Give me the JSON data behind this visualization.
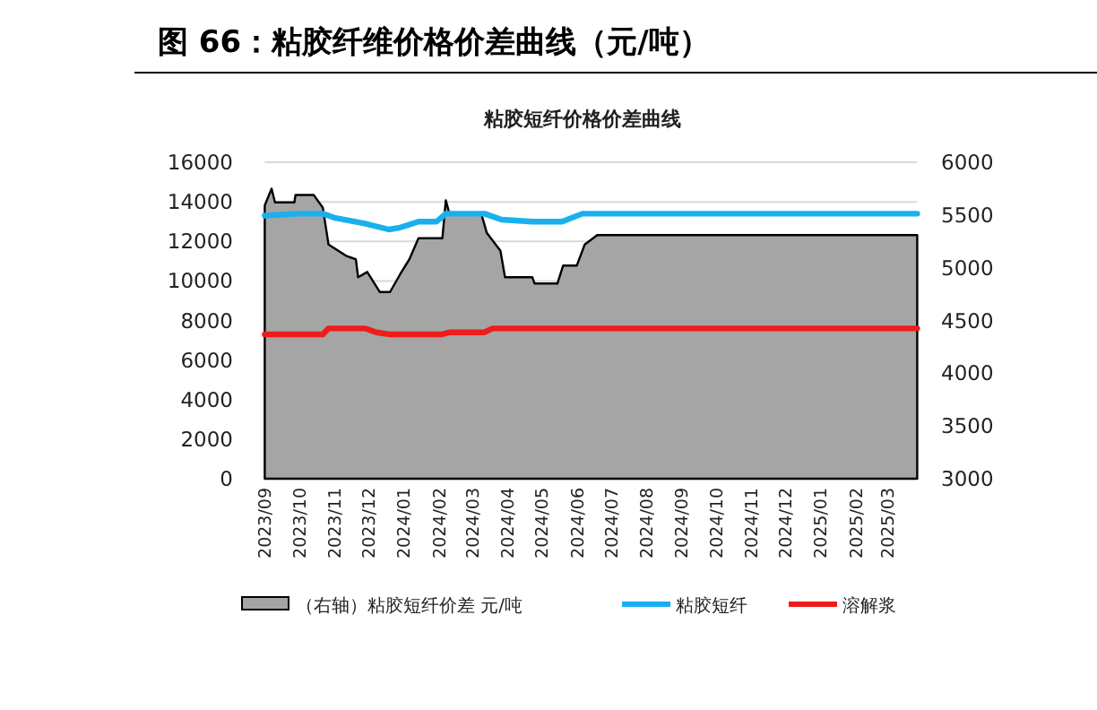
{
  "chart_data": {
    "type": "line",
    "title": "图 66：粘胶纤维价格价差曲线（元/吨）",
    "subtitle": "粘胶短纤价格价差曲线",
    "xlim": [
      "2023-09-01",
      "2025-03-27"
    ],
    "xticks": [
      {
        "value": "2023-09",
        "label": "2023/09"
      },
      {
        "value": "2023-10",
        "label": "2023/10"
      },
      {
        "value": "2023-11",
        "label": "2023/11"
      },
      {
        "value": "2023-12",
        "label": "2023/12"
      },
      {
        "value": "2024-01",
        "label": "2024/01"
      },
      {
        "value": "2024-02",
        "label": "2024/02"
      },
      {
        "value": "2024-03",
        "label": "2024/03"
      },
      {
        "value": "2024-04",
        "label": "2024/04"
      },
      {
        "value": "2024-05",
        "label": "2024/05"
      },
      {
        "value": "2024-06",
        "label": "2024/06"
      },
      {
        "value": "2024-07",
        "label": "2024/07"
      },
      {
        "value": "2024-08",
        "label": "2024/08"
      },
      {
        "value": "2024-09",
        "label": "2024/09"
      },
      {
        "value": "2024-10",
        "label": "2024/10"
      },
      {
        "value": "2024-11",
        "label": "2024/11"
      },
      {
        "value": "2024-12",
        "label": "2024/12"
      },
      {
        "value": "2025-01",
        "label": "2025/01"
      },
      {
        "value": "2025-02",
        "label": "2025/02"
      },
      {
        "value": "2025-03",
        "label": "2025/03"
      }
    ],
    "ylim": [
      0,
      16000
    ],
    "yticks": [
      0,
      2000,
      4000,
      6000,
      8000,
      10000,
      12000,
      14000,
      16000
    ],
    "y2lim": [
      3000,
      6000
    ],
    "y2ticks": [
      3000,
      3500,
      4000,
      4500,
      5000,
      5500,
      6000
    ],
    "grid": "y",
    "legend": "bottom",
    "series": [
      {
        "name": "（右轴）粘胶短纤价差 元/吨",
        "type": "area",
        "axis": "y2",
        "color": "#a5a5a5",
        "x": [
          "2023-09-01",
          "2023-09-07",
          "2023-09-10",
          "2023-09-27",
          "2023-09-28",
          "2023-10-14",
          "2023-10-22",
          "2023-10-27",
          "2023-11-12",
          "2023-11-20",
          "2023-11-22",
          "2023-11-30",
          "2023-12-11",
          "2023-12-20",
          "2023-12-29",
          "2024-01-06",
          "2024-01-14",
          "2024-02-04",
          "2024-02-07",
          "2024-02-10",
          "2024-03-09",
          "2024-03-14",
          "2024-03-26",
          "2024-03-30",
          "2024-04-23",
          "2024-04-25",
          "2024-05-15",
          "2024-05-20",
          "2024-06-01",
          "2024-06-08",
          "2024-06-19",
          "2025-03-27"
        ],
        "values": [
          5590,
          5750,
          5620,
          5620,
          5690,
          5690,
          5570,
          5220,
          5110,
          5080,
          4910,
          4960,
          4770,
          4770,
          4940,
          5080,
          5280,
          5280,
          5640,
          5520,
          5520,
          5330,
          5160,
          4910,
          4910,
          4850,
          4850,
          5020,
          5020,
          5220,
          5310,
          5310
        ]
      },
      {
        "name": "粘胶短纤",
        "color": "#1ab0ee",
        "x": [
          "2023-09-01",
          "2023-10-01",
          "2023-10-22",
          "2023-11-01",
          "2023-11-28",
          "2023-12-19",
          "2023-12-29",
          "2024-01-14",
          "2024-01-30",
          "2024-02-07",
          "2024-03-12",
          "2024-03-27",
          "2024-04-23",
          "2024-05-19",
          "2024-06-06",
          "2024-06-30",
          "2025-03-27"
        ],
        "values": [
          13300,
          13400,
          13400,
          13200,
          12900,
          12600,
          12700,
          13000,
          13000,
          13400,
          13400,
          13100,
          13000,
          13000,
          13400,
          13400,
          13400
        ]
      },
      {
        "name": "溶解浆",
        "color": "#ee1c1c",
        "x": [
          "2023-09-01",
          "2023-10-22",
          "2023-10-27",
          "2023-11-28",
          "2023-12-08",
          "2023-12-19",
          "2024-02-04",
          "2024-02-10",
          "2024-03-12",
          "2024-03-19",
          "2025-03-27"
        ],
        "values": [
          7300,
          7300,
          7600,
          7600,
          7400,
          7300,
          7300,
          7400,
          7400,
          7600,
          7600
        ]
      }
    ]
  }
}
